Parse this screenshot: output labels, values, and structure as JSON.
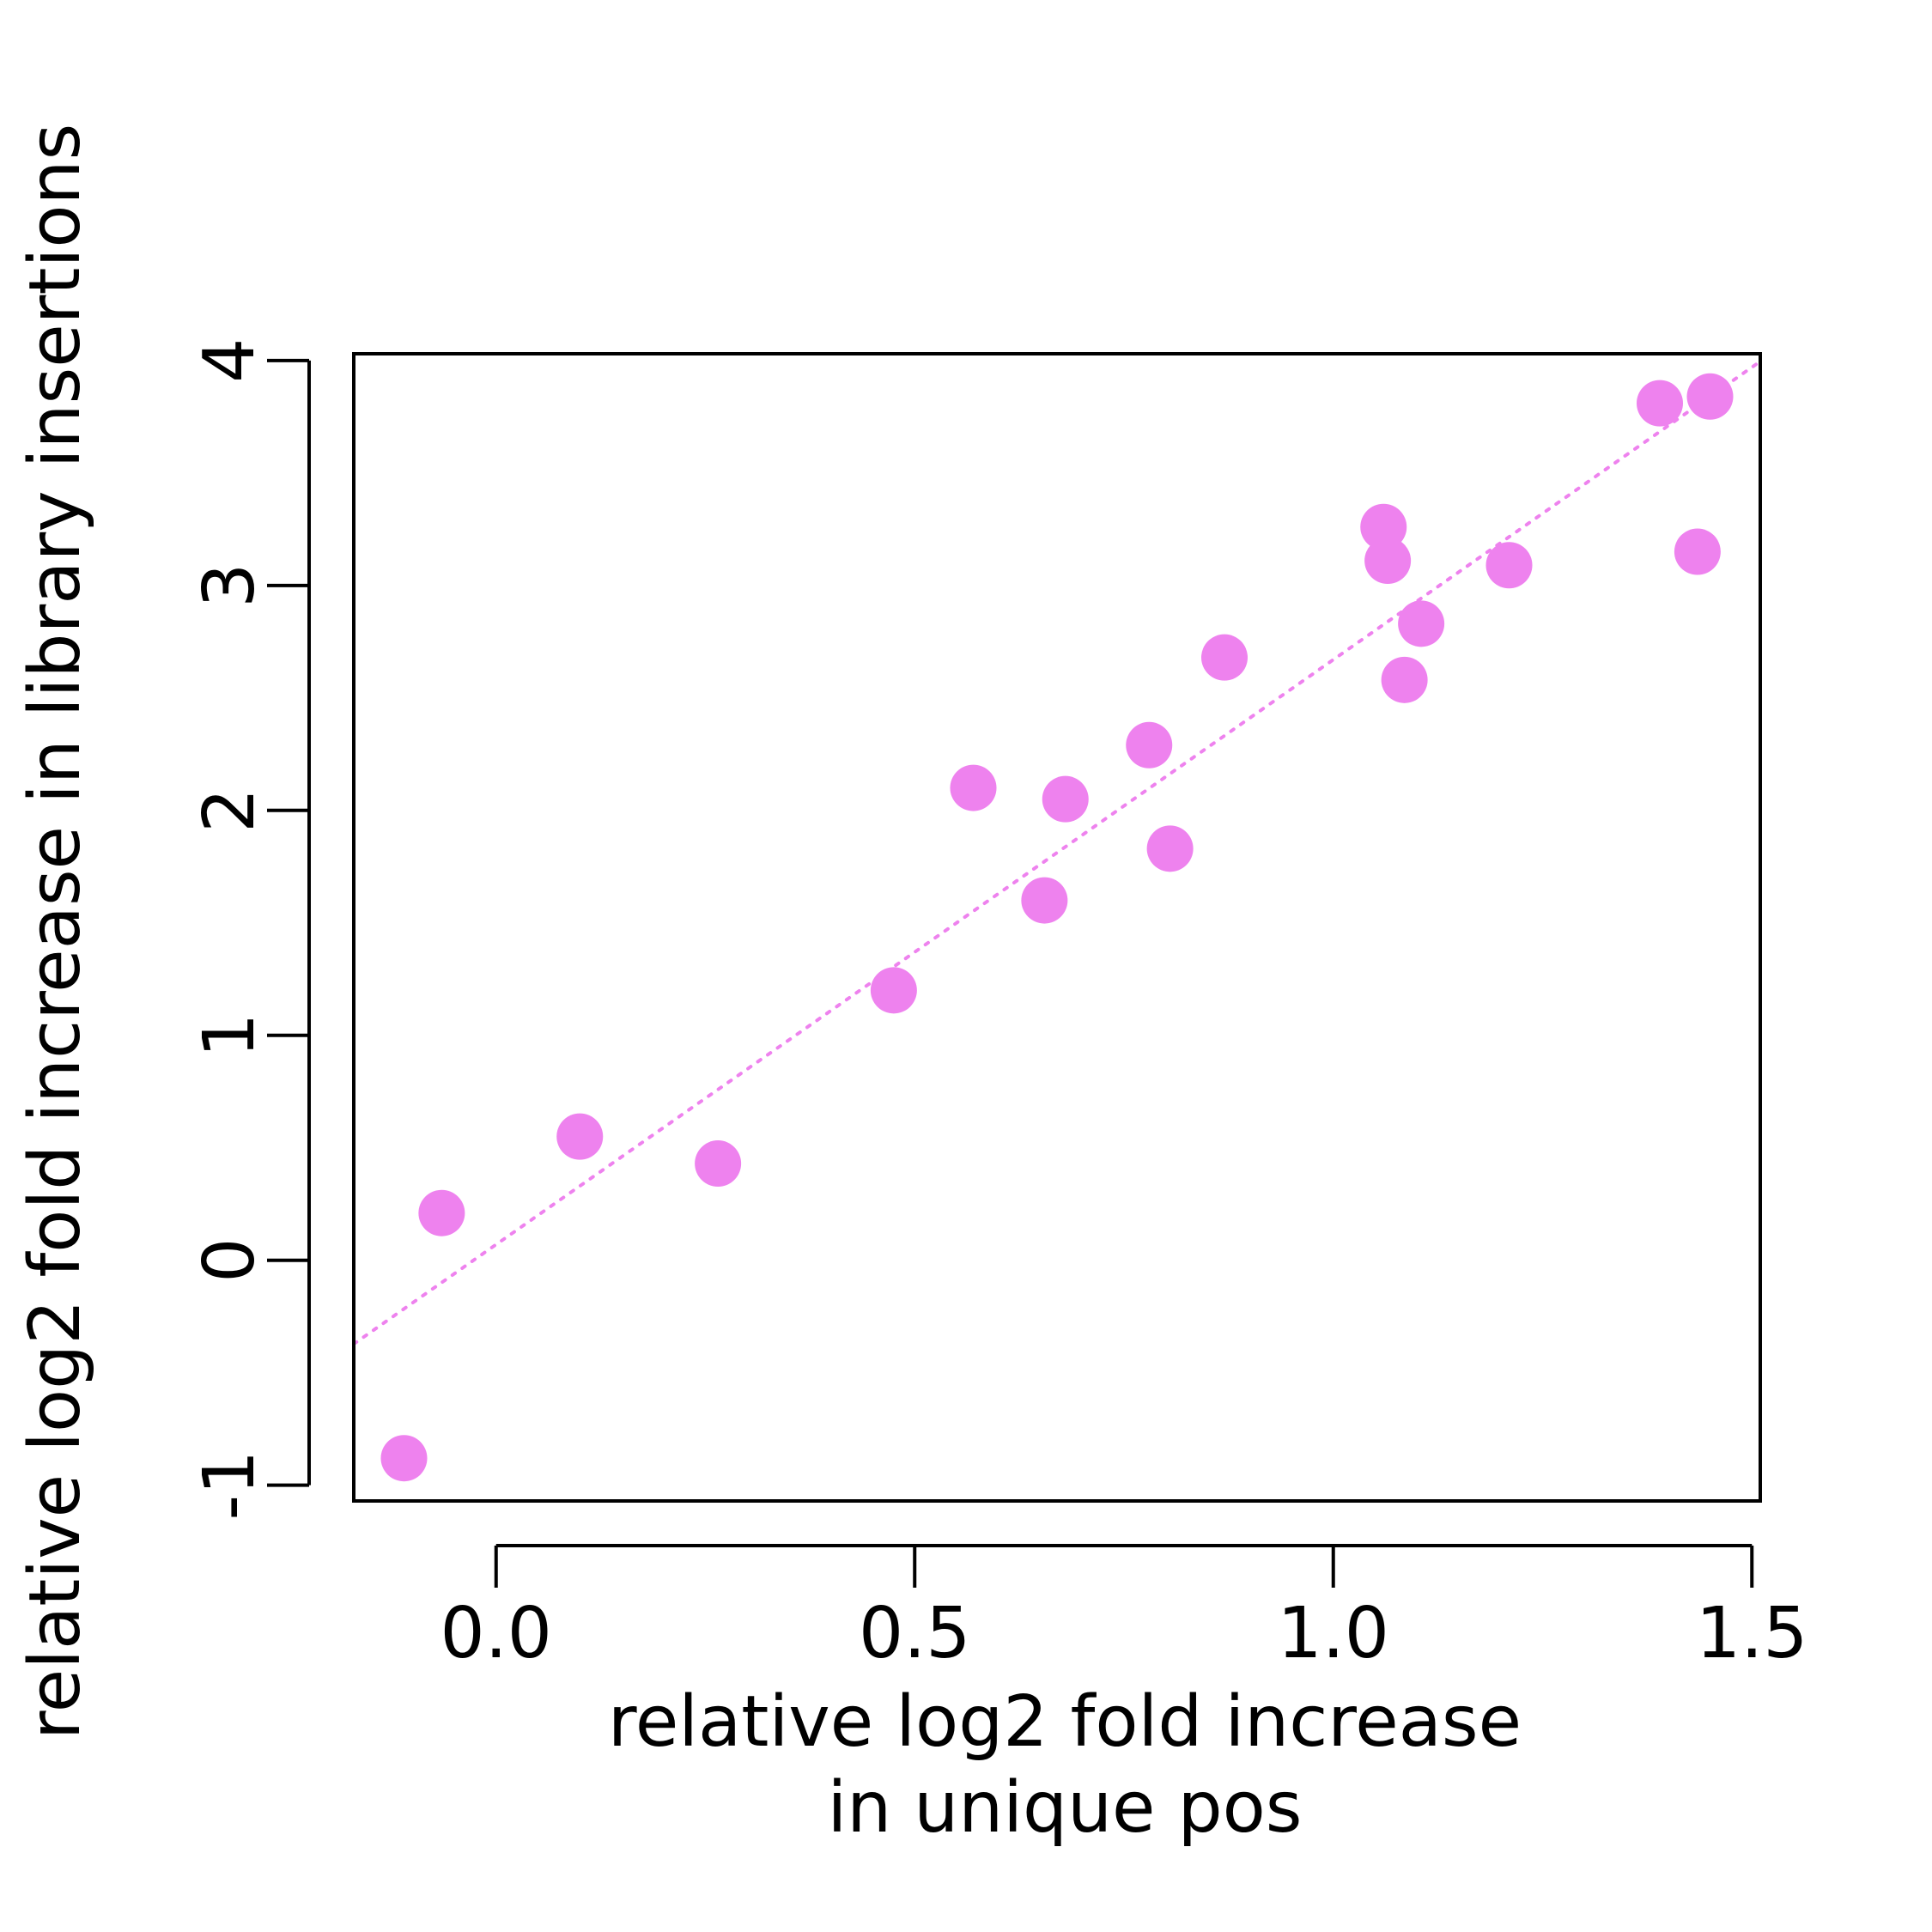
{
  "chart_data": {
    "type": "scatter",
    "title": "",
    "xlabel": [
      "relative log2 fold increase",
      "in unique pos"
    ],
    "ylabel": "relative log2 fold increase in library insertions",
    "xlim": [
      -0.17,
      1.51
    ],
    "ylim": [
      -1.07,
      4.03
    ],
    "xticks": [
      0.0,
      0.5,
      1.0,
      1.5
    ],
    "xtick_labels": [
      "0.0",
      "0.5",
      "1.0",
      "1.5"
    ],
    "yticks": [
      -1,
      0,
      1,
      2,
      3,
      4
    ],
    "ytick_labels": [
      "-1",
      "0",
      "1",
      "2",
      "3",
      "4"
    ],
    "grid": false,
    "legend": "none",
    "point_color": "#EE82EE",
    "line_color": "#EE82EE",
    "points": [
      {
        "x": -0.11,
        "y": -0.88
      },
      {
        "x": -0.065,
        "y": 0.21
      },
      {
        "x": 0.1,
        "y": 0.55
      },
      {
        "x": 0.265,
        "y": 0.43
      },
      {
        "x": 0.475,
        "y": 1.2
      },
      {
        "x": 0.57,
        "y": 2.1
      },
      {
        "x": 0.655,
        "y": 1.6
      },
      {
        "x": 0.68,
        "y": 2.05
      },
      {
        "x": 0.78,
        "y": 2.29
      },
      {
        "x": 0.805,
        "y": 1.83
      },
      {
        "x": 0.87,
        "y": 2.68
      },
      {
        "x": 1.06,
        "y": 3.26
      },
      {
        "x": 1.065,
        "y": 3.11
      },
      {
        "x": 1.085,
        "y": 2.58
      },
      {
        "x": 1.105,
        "y": 2.83
      },
      {
        "x": 1.21,
        "y": 3.09
      },
      {
        "x": 1.39,
        "y": 3.81
      },
      {
        "x": 1.435,
        "y": 3.15
      },
      {
        "x": 1.45,
        "y": 3.84
      }
    ],
    "fit_line": {
      "style": "dotted",
      "intercept": 0.07,
      "slope": 2.6
    }
  }
}
